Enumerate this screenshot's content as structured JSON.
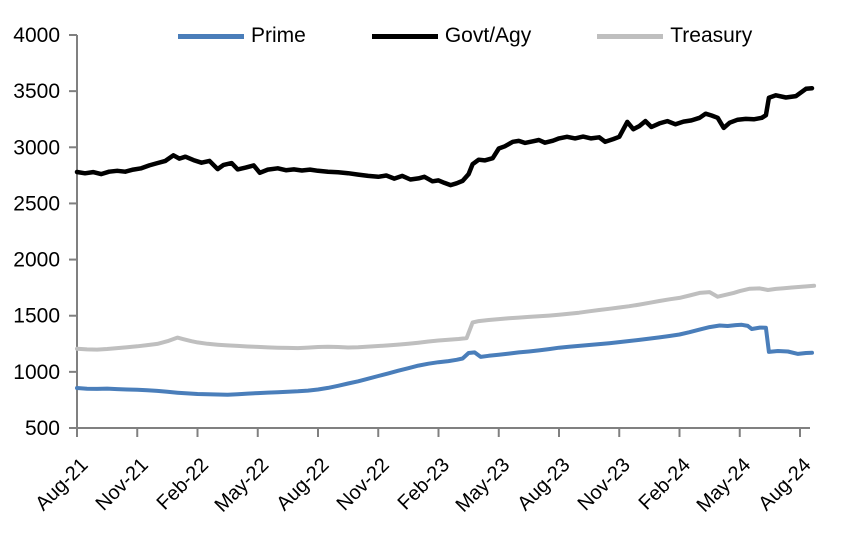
{
  "chart_data": {
    "type": "line",
    "title": "",
    "xlabel": "",
    "ylabel": "",
    "grid": false,
    "legend_position": "top",
    "x_unit": "months since Aug-2021",
    "x_range_months": [
      0,
      36.7
    ],
    "y_axis": {
      "ylim": [
        500,
        4000
      ],
      "ticks": [
        4000,
        3500,
        3000,
        2500,
        2000,
        1500,
        1000,
        500
      ]
    },
    "x_axis": {
      "ticks": [
        {
          "m": 0,
          "label": "Aug-21"
        },
        {
          "m": 3,
          "label": "Nov-21"
        },
        {
          "m": 6,
          "label": "Feb-22"
        },
        {
          "m": 9,
          "label": "May-22"
        },
        {
          "m": 12,
          "label": "Aug-22"
        },
        {
          "m": 15,
          "label": "Nov-22"
        },
        {
          "m": 18,
          "label": "Feb-23"
        },
        {
          "m": 21,
          "label": "May-23"
        },
        {
          "m": 24,
          "label": "Aug-23"
        },
        {
          "m": 27,
          "label": "Nov-23"
        },
        {
          "m": 30,
          "label": "Feb-24"
        },
        {
          "m": 33,
          "label": "May-24"
        },
        {
          "m": 36,
          "label": "Aug-24"
        }
      ]
    },
    "axis_color": "#808080",
    "series": [
      {
        "name": "Prime",
        "color": "#4a7eba",
        "stroke_width": 4,
        "points": [
          [
            0,
            856
          ],
          [
            0.5,
            850
          ],
          [
            1,
            848
          ],
          [
            1.5,
            851
          ],
          [
            2,
            846
          ],
          [
            2.5,
            843
          ],
          [
            3,
            840
          ],
          [
            3.5,
            836
          ],
          [
            4,
            830
          ],
          [
            4.5,
            822
          ],
          [
            5,
            814
          ],
          [
            5.5,
            808
          ],
          [
            6,
            803
          ],
          [
            6.5,
            800
          ],
          [
            7,
            798
          ],
          [
            7.5,
            797
          ],
          [
            8,
            801
          ],
          [
            8.5,
            806
          ],
          [
            9,
            811
          ],
          [
            9.5,
            815
          ],
          [
            10,
            819
          ],
          [
            10.5,
            823
          ],
          [
            11,
            827
          ],
          [
            11.5,
            833
          ],
          [
            12,
            843
          ],
          [
            12.5,
            857
          ],
          [
            13,
            876
          ],
          [
            13.5,
            896
          ],
          [
            14,
            916
          ],
          [
            14.5,
            939
          ],
          [
            15,
            963
          ],
          [
            15.5,
            986
          ],
          [
            16,
            1010
          ],
          [
            16.5,
            1033
          ],
          [
            17,
            1056
          ],
          [
            17.5,
            1073
          ],
          [
            18,
            1086
          ],
          [
            18.5,
            1096
          ],
          [
            18.9,
            1107
          ],
          [
            19.2,
            1119
          ],
          [
            19.5,
            1168
          ],
          [
            19.8,
            1173
          ],
          [
            20.1,
            1133
          ],
          [
            20.5,
            1143
          ],
          [
            21,
            1153
          ],
          [
            21.5,
            1163
          ],
          [
            22,
            1173
          ],
          [
            22.5,
            1181
          ],
          [
            23,
            1191
          ],
          [
            23.5,
            1203
          ],
          [
            24,
            1215
          ],
          [
            24.5,
            1223
          ],
          [
            25,
            1231
          ],
          [
            25.5,
            1239
          ],
          [
            26,
            1247
          ],
          [
            26.5,
            1255
          ],
          [
            27,
            1265
          ],
          [
            27.5,
            1275
          ],
          [
            28,
            1285
          ],
          [
            28.5,
            1296
          ],
          [
            29,
            1307
          ],
          [
            29.5,
            1319
          ],
          [
            30,
            1333
          ],
          [
            30.5,
            1353
          ],
          [
            31,
            1376
          ],
          [
            31.5,
            1399
          ],
          [
            32,
            1413
          ],
          [
            32.4,
            1408
          ],
          [
            32.8,
            1416
          ],
          [
            33.1,
            1419
          ],
          [
            33.4,
            1409
          ],
          [
            33.6,
            1382
          ],
          [
            34,
            1394
          ],
          [
            34.3,
            1393
          ],
          [
            34.45,
            1178
          ],
          [
            34.9,
            1186
          ],
          [
            35.4,
            1181
          ],
          [
            35.9,
            1160
          ],
          [
            36.3,
            1168
          ],
          [
            36.6,
            1170
          ]
        ]
      },
      {
        "name": "Govt/Agy",
        "color": "#000000",
        "stroke_width": 4.5,
        "points": [
          [
            0,
            2780
          ],
          [
            0.4,
            2768
          ],
          [
            0.8,
            2779
          ],
          [
            1.2,
            2761
          ],
          [
            1.6,
            2783
          ],
          [
            2,
            2791
          ],
          [
            2.4,
            2783
          ],
          [
            2.8,
            2801
          ],
          [
            3.2,
            2813
          ],
          [
            3.6,
            2839
          ],
          [
            4,
            2859
          ],
          [
            4.4,
            2879
          ],
          [
            4.8,
            2929
          ],
          [
            5.1,
            2899
          ],
          [
            5.4,
            2916
          ],
          [
            5.8,
            2886
          ],
          [
            6.2,
            2863
          ],
          [
            6.6,
            2879
          ],
          [
            7,
            2806
          ],
          [
            7.3,
            2843
          ],
          [
            7.7,
            2859
          ],
          [
            8,
            2803
          ],
          [
            8.4,
            2819
          ],
          [
            8.8,
            2839
          ],
          [
            9.1,
            2773
          ],
          [
            9.5,
            2801
          ],
          [
            10,
            2813
          ],
          [
            10.4,
            2796
          ],
          [
            10.8,
            2803
          ],
          [
            11.2,
            2793
          ],
          [
            11.6,
            2801
          ],
          [
            12,
            2791
          ],
          [
            12.5,
            2783
          ],
          [
            13,
            2777
          ],
          [
            13.5,
            2769
          ],
          [
            14,
            2757
          ],
          [
            14.5,
            2745
          ],
          [
            15,
            2737
          ],
          [
            15.4,
            2749
          ],
          [
            15.8,
            2721
          ],
          [
            16.2,
            2745
          ],
          [
            16.6,
            2713
          ],
          [
            17,
            2723
          ],
          [
            17.3,
            2737
          ],
          [
            17.7,
            2697
          ],
          [
            18,
            2705
          ],
          [
            18.3,
            2683
          ],
          [
            18.6,
            2663
          ],
          [
            18.9,
            2679
          ],
          [
            19.2,
            2701
          ],
          [
            19.5,
            2761
          ],
          [
            19.7,
            2849
          ],
          [
            20,
            2889
          ],
          [
            20.3,
            2883
          ],
          [
            20.7,
            2903
          ],
          [
            21,
            2989
          ],
          [
            21.3,
            3009
          ],
          [
            21.7,
            3049
          ],
          [
            22,
            3057
          ],
          [
            22.3,
            3039
          ],
          [
            22.7,
            3053
          ],
          [
            23,
            3065
          ],
          [
            23.3,
            3041
          ],
          [
            23.7,
            3059
          ],
          [
            24,
            3079
          ],
          [
            24.4,
            3093
          ],
          [
            24.8,
            3079
          ],
          [
            25.2,
            3095
          ],
          [
            25.6,
            3079
          ],
          [
            26,
            3089
          ],
          [
            26.3,
            3049
          ],
          [
            26.7,
            3073
          ],
          [
            27,
            3093
          ],
          [
            27.4,
            3226
          ],
          [
            27.7,
            3161
          ],
          [
            28,
            3189
          ],
          [
            28.3,
            3233
          ],
          [
            28.6,
            3181
          ],
          [
            29,
            3213
          ],
          [
            29.4,
            3233
          ],
          [
            29.8,
            3205
          ],
          [
            30.2,
            3229
          ],
          [
            30.6,
            3239
          ],
          [
            31,
            3263
          ],
          [
            31.3,
            3299
          ],
          [
            31.6,
            3283
          ],
          [
            31.9,
            3263
          ],
          [
            32.2,
            3173
          ],
          [
            32.5,
            3219
          ],
          [
            32.9,
            3246
          ],
          [
            33.3,
            3253
          ],
          [
            33.7,
            3249
          ],
          [
            34.1,
            3263
          ],
          [
            34.3,
            3286
          ],
          [
            34.45,
            3442
          ],
          [
            34.8,
            3463
          ],
          [
            35.3,
            3443
          ],
          [
            35.8,
            3456
          ],
          [
            36.3,
            3521
          ],
          [
            36.6,
            3526
          ]
        ]
      },
      {
        "name": "Treasury",
        "color": "#bfbfbf",
        "stroke_width": 4,
        "points": [
          [
            0,
            1205
          ],
          [
            0.5,
            1200
          ],
          [
            1,
            1198
          ],
          [
            1.5,
            1204
          ],
          [
            2,
            1212
          ],
          [
            2.5,
            1220
          ],
          [
            3,
            1228
          ],
          [
            3.5,
            1238
          ],
          [
            4,
            1249
          ],
          [
            4.5,
            1273
          ],
          [
            5,
            1305
          ],
          [
            5.3,
            1291
          ],
          [
            5.7,
            1273
          ],
          [
            6,
            1262
          ],
          [
            6.5,
            1250
          ],
          [
            7,
            1242
          ],
          [
            7.5,
            1236
          ],
          [
            8,
            1231
          ],
          [
            8.5,
            1226
          ],
          [
            9,
            1222
          ],
          [
            9.5,
            1218
          ],
          [
            10,
            1215
          ],
          [
            10.5,
            1213
          ],
          [
            11,
            1212
          ],
          [
            11.5,
            1216
          ],
          [
            12,
            1221
          ],
          [
            12.5,
            1224
          ],
          [
            13,
            1221
          ],
          [
            13.5,
            1217
          ],
          [
            14,
            1220
          ],
          [
            14.5,
            1225
          ],
          [
            15,
            1230
          ],
          [
            15.5,
            1236
          ],
          [
            16,
            1243
          ],
          [
            16.5,
            1251
          ],
          [
            17,
            1260
          ],
          [
            17.5,
            1270
          ],
          [
            18,
            1279
          ],
          [
            18.5,
            1286
          ],
          [
            19,
            1293
          ],
          [
            19.4,
            1301
          ],
          [
            19.7,
            1440
          ],
          [
            20,
            1452
          ],
          [
            20.5,
            1462
          ],
          [
            21,
            1470
          ],
          [
            21.5,
            1477
          ],
          [
            22,
            1483
          ],
          [
            22.5,
            1489
          ],
          [
            23,
            1495
          ],
          [
            23.5,
            1501
          ],
          [
            24,
            1509
          ],
          [
            24.5,
            1517
          ],
          [
            25,
            1527
          ],
          [
            25.5,
            1539
          ],
          [
            26,
            1551
          ],
          [
            26.5,
            1562
          ],
          [
            27,
            1573
          ],
          [
            27.5,
            1585
          ],
          [
            28,
            1599
          ],
          [
            28.5,
            1615
          ],
          [
            29,
            1631
          ],
          [
            29.5,
            1646
          ],
          [
            30,
            1659
          ],
          [
            30.5,
            1680
          ],
          [
            31,
            1703
          ],
          [
            31.5,
            1710
          ],
          [
            31.9,
            1669
          ],
          [
            32.3,
            1686
          ],
          [
            32.7,
            1703
          ],
          [
            33,
            1719
          ],
          [
            33.5,
            1741
          ],
          [
            34,
            1743
          ],
          [
            34.4,
            1729
          ],
          [
            34.8,
            1739
          ],
          [
            35.2,
            1745
          ],
          [
            35.6,
            1751
          ],
          [
            36,
            1757
          ],
          [
            36.4,
            1762
          ],
          [
            36.7,
            1766
          ]
        ]
      }
    ]
  }
}
